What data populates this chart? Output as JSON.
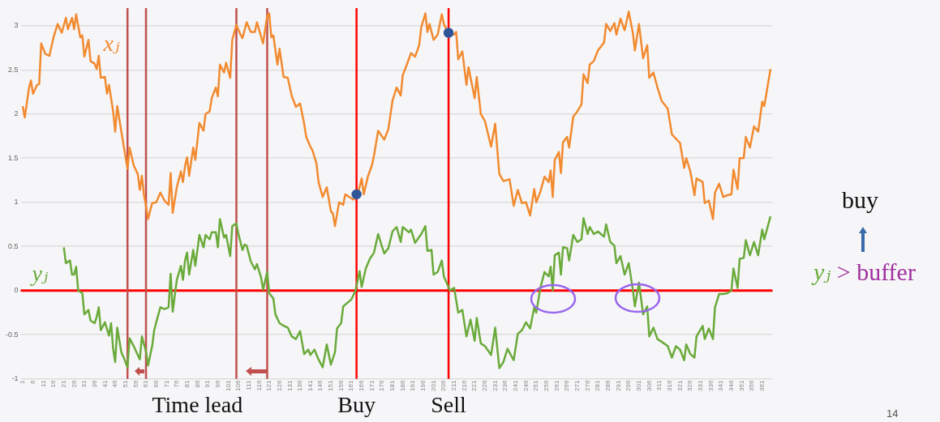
{
  "chart_data": {
    "type": "line",
    "series": [
      {
        "name": "xⱼ",
        "color": "#f28a30",
        "x": [
          1,
          2,
          4,
          5,
          6,
          8,
          9,
          10,
          12,
          14,
          16,
          18,
          20,
          22,
          23,
          25,
          26,
          27,
          29,
          30,
          31,
          33,
          34,
          36,
          37,
          38,
          39,
          41,
          42,
          43,
          45,
          46,
          47,
          49,
          50,
          52,
          53,
          55,
          57,
          58,
          59,
          60,
          61,
          62,
          64,
          66,
          68,
          70,
          72,
          73,
          74,
          76,
          78,
          79,
          80,
          81,
          82,
          84,
          85,
          87,
          89,
          90,
          92,
          93,
          95,
          96,
          97,
          99,
          100,
          102,
          103,
          105,
          107,
          108,
          110,
          112,
          114,
          115,
          118,
          120,
          121,
          122,
          123,
          125,
          126,
          128,
          130,
          132,
          134,
          136,
          138,
          139,
          141,
          142,
          144,
          145,
          147,
          149,
          151,
          152,
          153,
          155,
          157,
          158,
          160,
          162,
          164,
          166,
          167,
          169,
          171,
          172,
          174,
          177,
          179,
          181,
          183,
          185,
          186,
          188,
          190,
          192,
          194,
          195,
          197,
          198,
          199,
          201,
          203,
          205,
          206,
          208,
          211,
          212,
          213,
          215,
          217,
          218,
          221,
          222,
          224,
          226,
          229,
          231,
          233,
          235,
          238,
          240,
          242,
          244,
          246,
          248,
          250,
          251,
          253,
          255,
          257,
          258,
          259,
          260,
          262,
          263,
          264,
          266,
          267,
          269,
          271,
          273,
          274,
          276,
          277,
          279,
          281,
          284,
          285,
          287,
          289,
          290,
          292,
          294,
          296,
          298,
          299,
          301,
          303,
          305,
          306,
          308,
          310,
          312,
          315,
          317,
          319,
          321,
          323,
          324,
          326,
          328,
          329,
          332,
          333,
          335,
          337,
          338,
          340,
          342,
          344,
          346,
          347,
          349,
          350,
          352,
          353,
          355,
          357,
          359,
          361,
          362,
          365
        ],
        "values": [
          2.09,
          1.96,
          2.29,
          2.38,
          2.23,
          2.33,
          2.34,
          2.8,
          2.68,
          2.66,
          2.87,
          3.02,
          2.92,
          3.09,
          2.96,
          3.09,
          2.96,
          3.13,
          2.87,
          2.89,
          2.65,
          2.84,
          2.6,
          2.57,
          2.51,
          2.66,
          2.41,
          2.42,
          2.23,
          2.33,
          2.03,
          1.8,
          2.09,
          1.8,
          1.66,
          1.38,
          1.62,
          1.42,
          1.32,
          1.14,
          1.3,
          1.08,
          0.96,
          0.81,
          0.99,
          1.0,
          1.11,
          1.02,
          0.97,
          1.33,
          0.88,
          1.17,
          1.35,
          1.23,
          1.41,
          1.51,
          1.3,
          1.62,
          1.48,
          1.9,
          1.81,
          2.0,
          2.03,
          2.18,
          2.3,
          2.2,
          2.56,
          2.47,
          2.58,
          2.41,
          2.84,
          3.01,
          2.9,
          2.86,
          3.04,
          2.93,
          2.93,
          3.04,
          2.8,
          3.11,
          3.14,
          2.87,
          2.89,
          2.56,
          2.74,
          2.42,
          2.41,
          2.2,
          2.08,
          2.12,
          1.89,
          1.74,
          1.63,
          1.59,
          1.44,
          1.23,
          1.06,
          1.17,
          0.9,
          0.87,
          0.73,
          1.0,
          0.97,
          1.09,
          1.06,
          1.03,
          1.08,
          1.27,
          1.09,
          1.29,
          1.42,
          1.53,
          1.81,
          1.71,
          1.83,
          2.15,
          2.3,
          2.21,
          2.44,
          2.56,
          2.69,
          2.65,
          2.78,
          2.98,
          3.14,
          2.93,
          3.02,
          2.84,
          2.9,
          3.13,
          3.02,
          2.92,
          2.9,
          2.93,
          2.62,
          2.71,
          2.33,
          2.53,
          2.18,
          2.42,
          2.0,
          1.92,
          1.63,
          1.89,
          1.32,
          1.24,
          1.26,
          0.96,
          1.14,
          0.99,
          1.0,
          0.85,
          1.15,
          1.0,
          1.12,
          1.29,
          1.23,
          1.36,
          1.06,
          1.48,
          1.57,
          1.33,
          1.68,
          1.74,
          1.62,
          1.97,
          2.03,
          2.11,
          2.45,
          2.35,
          2.56,
          2.6,
          2.72,
          2.81,
          3.02,
          2.94,
          3.03,
          2.9,
          3.08,
          2.95,
          3.16,
          2.92,
          2.72,
          3.02,
          2.63,
          2.78,
          2.41,
          2.47,
          2.3,
          2.15,
          2.06,
          1.77,
          1.72,
          1.67,
          1.39,
          1.5,
          1.35,
          1.08,
          1.27,
          1.23,
          0.99,
          1.02,
          0.81,
          1.11,
          1.21,
          1.06,
          1.08,
          1.09,
          1.37,
          1.15,
          1.5,
          1.5,
          1.74,
          1.62,
          1.86,
          1.8,
          2.14,
          2.09,
          2.51
        ]
      },
      {
        "name": "yⱼ",
        "color": "#6aaa3a",
        "x": [
          21,
          22,
          24,
          25,
          26,
          27,
          28,
          30,
          31,
          33,
          34,
          36,
          37,
          38,
          39,
          41,
          43,
          44,
          45,
          46,
          47,
          49,
          50,
          52,
          53,
          55,
          57,
          58,
          59,
          61,
          62,
          64,
          65,
          66,
          68,
          70,
          72,
          73,
          74,
          76,
          78,
          79,
          80,
          81,
          82,
          84,
          85,
          87,
          89,
          90,
          92,
          93,
          95,
          96,
          97,
          99,
          100,
          102,
          103,
          105,
          106,
          108,
          109,
          110,
          112,
          114,
          115,
          117,
          118,
          120,
          121,
          123,
          124,
          126,
          128,
          130,
          132,
          134,
          136,
          138,
          140,
          141,
          143,
          145,
          147,
          149,
          151,
          153,
          154,
          156,
          157,
          161,
          163,
          165,
          166,
          168,
          170,
          172,
          174,
          176,
          177,
          179,
          181,
          183,
          185,
          186,
          189,
          190,
          192,
          195,
          197,
          198,
          200,
          201,
          203,
          205,
          206,
          209,
          211,
          213,
          215,
          217,
          219,
          221,
          222,
          224,
          226,
          229,
          231,
          233,
          235,
          237,
          240,
          242,
          244,
          246,
          248,
          250,
          251,
          253,
          255,
          257,
          258,
          259,
          260,
          262,
          263,
          264,
          266,
          267,
          269,
          271,
          273,
          274,
          276,
          277,
          279,
          281,
          284,
          285,
          287,
          289,
          290,
          292,
          294,
          296,
          298,
          299,
          301,
          303,
          305,
          306,
          308,
          310,
          312,
          315,
          317,
          319,
          321,
          323,
          324,
          326,
          328,
          329,
          332,
          333,
          335,
          337,
          338,
          340,
          342,
          344,
          346,
          347,
          349,
          350,
          352,
          353,
          355,
          357,
          359,
          361,
          362,
          365
        ],
        "values": [
          0.49,
          0.31,
          0.34,
          0.18,
          0.18,
          0.27,
          0.0,
          -0.03,
          -0.27,
          -0.22,
          -0.34,
          -0.37,
          -0.3,
          -0.19,
          -0.45,
          -0.36,
          -0.51,
          -0.37,
          -0.66,
          -0.81,
          -0.42,
          -0.7,
          -0.75,
          -0.87,
          -0.54,
          -0.63,
          -0.73,
          -0.78,
          -0.52,
          -0.69,
          -0.85,
          -0.63,
          -0.45,
          -0.36,
          -0.19,
          -0.21,
          -0.19,
          0.19,
          -0.24,
          0.12,
          0.28,
          0.12,
          0.34,
          0.43,
          0.18,
          0.46,
          0.28,
          0.63,
          0.49,
          0.63,
          0.58,
          0.66,
          0.66,
          0.49,
          0.81,
          0.6,
          0.63,
          0.39,
          0.73,
          0.76,
          0.64,
          0.46,
          0.52,
          0.51,
          0.33,
          0.24,
          0.3,
          0.15,
          0.01,
          0.21,
          -0.03,
          -0.09,
          -0.27,
          -0.37,
          -0.4,
          -0.42,
          -0.52,
          -0.55,
          -0.46,
          -0.72,
          -0.67,
          -0.73,
          -0.67,
          -0.78,
          -0.87,
          -0.61,
          -0.84,
          -0.7,
          -0.43,
          -0.37,
          -0.18,
          -0.1,
          0.0,
          0.22,
          0.04,
          0.25,
          0.36,
          0.43,
          0.64,
          0.49,
          0.42,
          0.48,
          0.67,
          0.72,
          0.55,
          0.72,
          0.66,
          0.69,
          0.54,
          0.64,
          0.73,
          0.45,
          0.46,
          0.18,
          0.21,
          0.34,
          0.16,
          0.0,
          0.03,
          -0.25,
          -0.22,
          -0.52,
          -0.33,
          -0.57,
          -0.31,
          -0.6,
          -0.63,
          -0.73,
          -0.42,
          -0.88,
          -0.81,
          -0.66,
          -0.79,
          -0.49,
          -0.45,
          -0.36,
          -0.43,
          -0.19,
          -0.25,
          0.03,
          0.21,
          0.16,
          0.27,
          0.0,
          0.4,
          0.43,
          0.18,
          0.49,
          0.48,
          0.34,
          0.63,
          0.55,
          0.58,
          0.82,
          0.64,
          0.72,
          0.64,
          0.67,
          0.61,
          0.75,
          0.55,
          0.51,
          0.31,
          0.39,
          0.18,
          0.31,
          0.01,
          -0.18,
          0.09,
          -0.27,
          -0.18,
          -0.52,
          -0.42,
          -0.55,
          -0.58,
          -0.63,
          -0.76,
          -0.63,
          -0.67,
          -0.79,
          -0.61,
          -0.72,
          -0.76,
          -0.52,
          -0.4,
          -0.55,
          -0.43,
          -0.55,
          -0.19,
          -0.04,
          -0.04,
          -0.03,
          0.0,
          0.25,
          0.03,
          0.36,
          0.37,
          0.57,
          0.4,
          0.55,
          0.4,
          0.69,
          0.58,
          0.84
        ]
      },
      {
        "type": "scatter",
        "marker": "circle",
        "color": "#2f5597",
        "x": [
          163.5,
          208.3
        ],
        "values": [
          1.09,
          2.92
        ]
      }
    ],
    "xlim": [
      0,
      366
    ],
    "xticks": [
      1,
      6,
      11,
      16,
      21,
      26,
      31,
      36,
      41,
      46,
      51,
      56,
      61,
      66,
      71,
      76,
      81,
      86,
      91,
      96,
      101,
      106,
      111,
      116,
      121,
      126,
      131,
      136,
      141,
      146,
      151,
      156,
      161,
      166,
      171,
      176,
      181,
      186,
      191,
      196,
      201,
      206,
      211,
      216,
      221,
      226,
      231,
      236,
      241,
      246,
      251,
      256,
      261,
      266,
      271,
      276,
      281,
      286,
      291,
      296,
      301,
      306,
      311,
      316,
      321,
      326,
      331,
      336,
      341,
      346,
      351,
      356,
      361
    ],
    "ylim": [
      -1,
      3.2
    ],
    "yticks": [
      -1,
      -0.5,
      0,
      0.5,
      1,
      1.5,
      2,
      2.5,
      3
    ],
    "grid": "y",
    "legend": false,
    "ref_lines": [
      {
        "axis": "y",
        "value": 0,
        "color": "#ff0000"
      },
      {
        "axis": "x",
        "value": 52,
        "color": "#c0504d"
      },
      {
        "axis": "x",
        "value": 61,
        "color": "#c0504d"
      },
      {
        "axis": "x",
        "value": 105,
        "color": "#c0504d"
      },
      {
        "axis": "x",
        "value": 120,
        "color": "#c0504d"
      },
      {
        "axis": "x",
        "value": 163.5,
        "label": "Buy",
        "color": "#ff0000"
      },
      {
        "axis": "x",
        "value": 208.3,
        "label": "Sell",
        "color": "#ff0000"
      }
    ],
    "annotations": [
      "Time lead",
      "buy",
      "yⱼ > buffer",
      "14"
    ]
  }
}
